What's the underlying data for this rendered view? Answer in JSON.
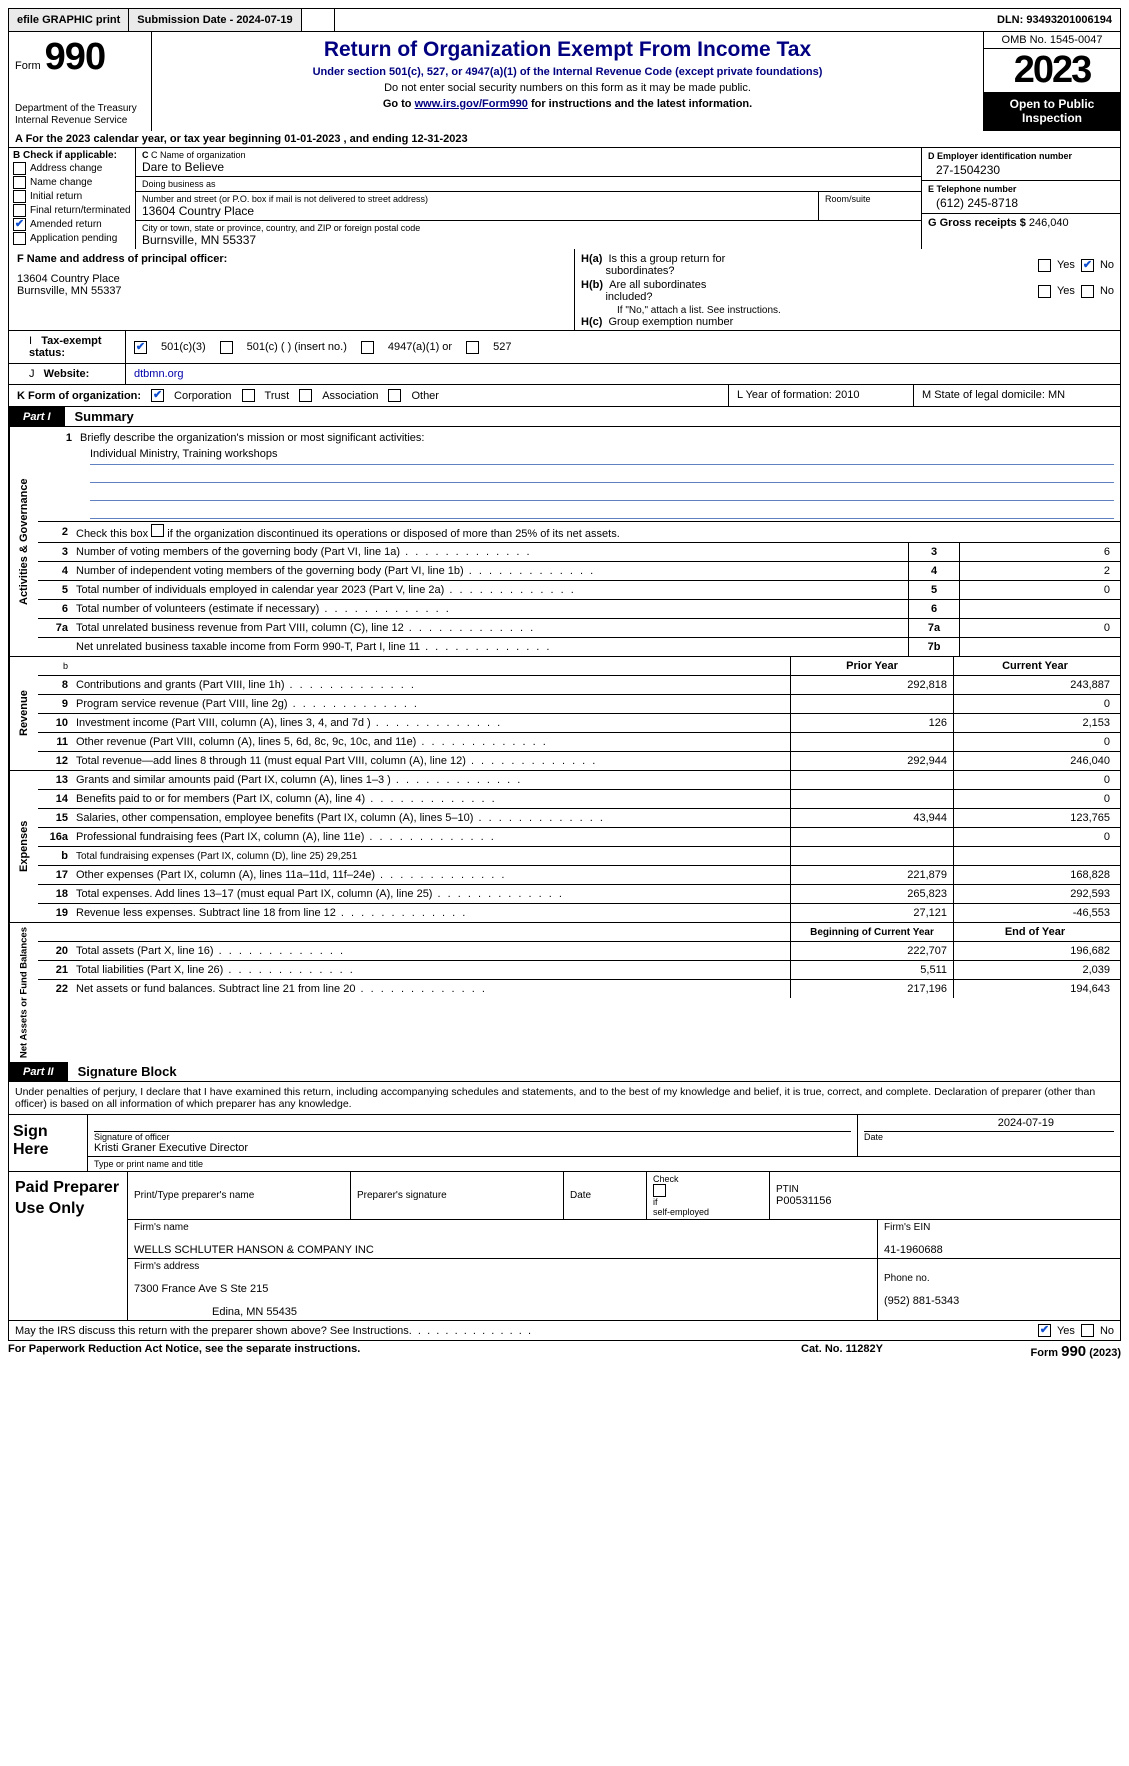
{
  "topbar": {
    "efile": "efile GRAPHIC print",
    "submission": "Submission Date - 2024-07-19",
    "dln_label": "DLN:",
    "dln": "93493201006194"
  },
  "header": {
    "form_word": "Form",
    "form_num": "990",
    "title": "Return of Organization Exempt From Income Tax",
    "subtitle": "Under section 501(c), 527, or 4947(a)(1) of the Internal Revenue Code (except private foundations)",
    "note": "Do not enter social security numbers on this form as it may be made public.",
    "goto_pre": "Go to ",
    "goto_url": "www.irs.gov/Form990",
    "goto_post": " for instructions and the latest information.",
    "dept": "Department of the Treasury\nInternal Revenue Service",
    "omb": "OMB No. 1545-0047",
    "year": "2023",
    "open": "Open to Public Inspection"
  },
  "row_a": "A For the 2023 calendar year, or tax year beginning 01-01-2023   , and ending 12-31-2023",
  "col_b": {
    "label": "B Check if applicable:",
    "items": [
      "Address change",
      "Name change",
      "Initial return",
      "Final return/terminated",
      "Amended return",
      "Application pending"
    ],
    "checked_index": 4
  },
  "col_c": {
    "name_lbl": "C Name of organization",
    "name": "Dare to Believe",
    "dba_lbl": "Doing business as",
    "dba": "",
    "addr_lbl": "Number and street (or P.O. box if mail is not delivered to street address)",
    "room_lbl": "Room/suite",
    "addr": "13604 Country Place",
    "city_lbl": "City or town, state or province, country, and ZIP or foreign postal code",
    "city": "Burnsville, MN  55337"
  },
  "col_de": {
    "d_lbl": "D Employer identification number",
    "d_val": "27-1504230",
    "e_lbl": "E Telephone number",
    "e_val": "(612) 245-8718",
    "g_lbl": "G Gross receipts $",
    "g_val": "246,040"
  },
  "f": {
    "lbl": "F  Name and address of principal officer:",
    "name": "",
    "addr1": "13604 Country Place",
    "addr2": "Burnsville, MN  55337"
  },
  "h": {
    "a_lbl": "H(a)  Is this a group return for subordinates?",
    "a_yes": false,
    "a_no": true,
    "b_lbl": "H(b)  Are all subordinates included?",
    "b_yes": false,
    "b_no": false,
    "b_note": "If \"No,\" attach a list. See instructions.",
    "c_lbl": "H(c)  Group exemption number"
  },
  "i": {
    "lbl": "Tax-exempt status:",
    "opts": [
      "501(c)(3)",
      "501(c) (  ) (insert no.)",
      "4947(a)(1) or",
      "527"
    ],
    "checked": 0
  },
  "j": {
    "lbl": "Website:",
    "val": "dtbmn.org"
  },
  "k": {
    "lbl": "K Form of organization:",
    "opts": [
      "Corporation",
      "Trust",
      "Association",
      "Other"
    ],
    "checked": 0
  },
  "l": "L Year of formation: 2010",
  "m": "M State of legal domicile: MN",
  "parts": {
    "p1_tab": "Part I",
    "p1_title": "Summary",
    "p2_tab": "Part II",
    "p2_title": "Signature Block"
  },
  "summary": {
    "line1_lbl": "Briefly describe the organization's mission or most significant activities:",
    "line1_val": "Individual Ministry, Training workshops",
    "line2": "Check this box      if the organization discontinued its operations or disposed of more than 25% of its net assets.",
    "ag_rows": [
      {
        "n": "3",
        "t": "Number of voting members of the governing body (Part VI, line 1a)",
        "a": "3",
        "v": "6"
      },
      {
        "n": "4",
        "t": "Number of independent voting members of the governing body (Part VI, line 1b)",
        "a": "4",
        "v": "2"
      },
      {
        "n": "5",
        "t": "Total number of individuals employed in calendar year 2023 (Part V, line 2a)",
        "a": "5",
        "v": "0"
      },
      {
        "n": "6",
        "t": "Total number of volunteers (estimate if necessary)",
        "a": "6",
        "v": ""
      },
      {
        "n": "7a",
        "t": "Total unrelated business revenue from Part VIII, column (C), line 12",
        "a": "7a",
        "v": "0"
      },
      {
        "n": "",
        "t": "Net unrelated business taxable income from Form 990-T, Part I, line 11",
        "a": "7b",
        "v": ""
      }
    ],
    "head_prior": "Prior Year",
    "head_curr": "Current Year",
    "rev_rows": [
      {
        "n": "8",
        "t": "Contributions and grants (Part VIII, line 1h)",
        "p": "292,818",
        "c": "243,887"
      },
      {
        "n": "9",
        "t": "Program service revenue (Part VIII, line 2g)",
        "p": "",
        "c": "0"
      },
      {
        "n": "10",
        "t": "Investment income (Part VIII, column (A), lines 3, 4, and 7d )",
        "p": "126",
        "c": "2,153"
      },
      {
        "n": "11",
        "t": "Other revenue (Part VIII, column (A), lines 5, 6d, 8c, 9c, 10c, and 11e)",
        "p": "",
        "c": "0"
      },
      {
        "n": "12",
        "t": "Total revenue—add lines 8 through 11 (must equal Part VIII, column (A), line 12)",
        "p": "292,944",
        "c": "246,040"
      }
    ],
    "exp_rows": [
      {
        "n": "13",
        "t": "Grants and similar amounts paid (Part IX, column (A), lines 1–3 )",
        "p": "",
        "c": "0"
      },
      {
        "n": "14",
        "t": "Benefits paid to or for members (Part IX, column (A), line 4)",
        "p": "",
        "c": "0"
      },
      {
        "n": "15",
        "t": "Salaries, other compensation, employee benefits (Part IX, column (A), lines 5–10)",
        "p": "43,944",
        "c": "123,765"
      },
      {
        "n": "16a",
        "t": "Professional fundraising fees (Part IX, column (A), line 11e)",
        "p": "",
        "c": "0"
      },
      {
        "n": "b",
        "t": "Total fundraising expenses (Part IX, column (D), line 25) 29,251",
        "p": "gray",
        "c": "gray",
        "small": true
      },
      {
        "n": "17",
        "t": "Other expenses (Part IX, column (A), lines 11a–11d, 11f–24e)",
        "p": "221,879",
        "c": "168,828"
      },
      {
        "n": "18",
        "t": "Total expenses. Add lines 13–17 (must equal Part IX, column (A), line 25)",
        "p": "265,823",
        "c": "292,593"
      },
      {
        "n": "19",
        "t": "Revenue less expenses. Subtract line 18 from line 12",
        "p": "27,121",
        "c": "-46,553"
      }
    ],
    "na_head_prior": "Beginning of Current Year",
    "na_head_curr": "End of Year",
    "na_rows": [
      {
        "n": "20",
        "t": "Total assets (Part X, line 16)",
        "p": "222,707",
        "c": "196,682"
      },
      {
        "n": "21",
        "t": "Total liabilities (Part X, line 26)",
        "p": "5,511",
        "c": "2,039"
      },
      {
        "n": "22",
        "t": "Net assets or fund balances. Subtract line 21 from line 20",
        "p": "217,196",
        "c": "194,643"
      }
    ],
    "cat_ag": "Activities & Governance",
    "cat_rev": "Revenue",
    "cat_exp": "Expenses",
    "cat_na": "Net Assets or Fund Balances"
  },
  "sig": {
    "penalties": "Under penalties of perjury, I declare that I have examined this return, including accompanying schedules and statements, and to the best of my knowledge and belief, it is true, correct, and complete. Declaration of preparer (other than officer) is based on all information of which preparer has any knowledge.",
    "sign_here": "Sign Here",
    "sig_officer_lbl": "Signature of officer",
    "officer": "Kristi Graner  Executive Director",
    "type_lbl": "Type or print name and title",
    "date_lbl": "Date",
    "date": "2024-07-19"
  },
  "paid": {
    "lbl": "Paid Preparer Use Only",
    "col_name": "Print/Type preparer's name",
    "col_sig": "Preparer's signature",
    "col_date": "Date",
    "col_check": "Check       if self-employed",
    "col_ptin_lbl": "PTIN",
    "ptin": "P00531156",
    "firm_name_lbl": "Firm's name",
    "firm_name": "WELLS SCHLUTER HANSON & COMPANY INC",
    "firm_ein_lbl": "Firm's EIN",
    "firm_ein": "41-1960688",
    "firm_addr_lbl": "Firm's address",
    "firm_addr1": "7300 France Ave S Ste 215",
    "firm_addr2": "Edina, MN  55435",
    "phone_lbl": "Phone no.",
    "phone": "(952) 881-5343"
  },
  "discuss": {
    "txt": "May the IRS discuss this return with the preparer shown above? See Instructions.",
    "yes": true,
    "no": false
  },
  "footer": {
    "left": "For Paperwork Reduction Act Notice, see the separate instructions.",
    "mid": "Cat. No. 11282Y",
    "right_pre": "Form ",
    "right_num": "990",
    "right_post": " (2023)"
  },
  "colors": {
    "navy": "#000080",
    "checkblue": "#1050d0",
    "underline": "#6080c0",
    "gray": "#d0d0d0",
    "topbar_bg": "#eaeaea"
  }
}
